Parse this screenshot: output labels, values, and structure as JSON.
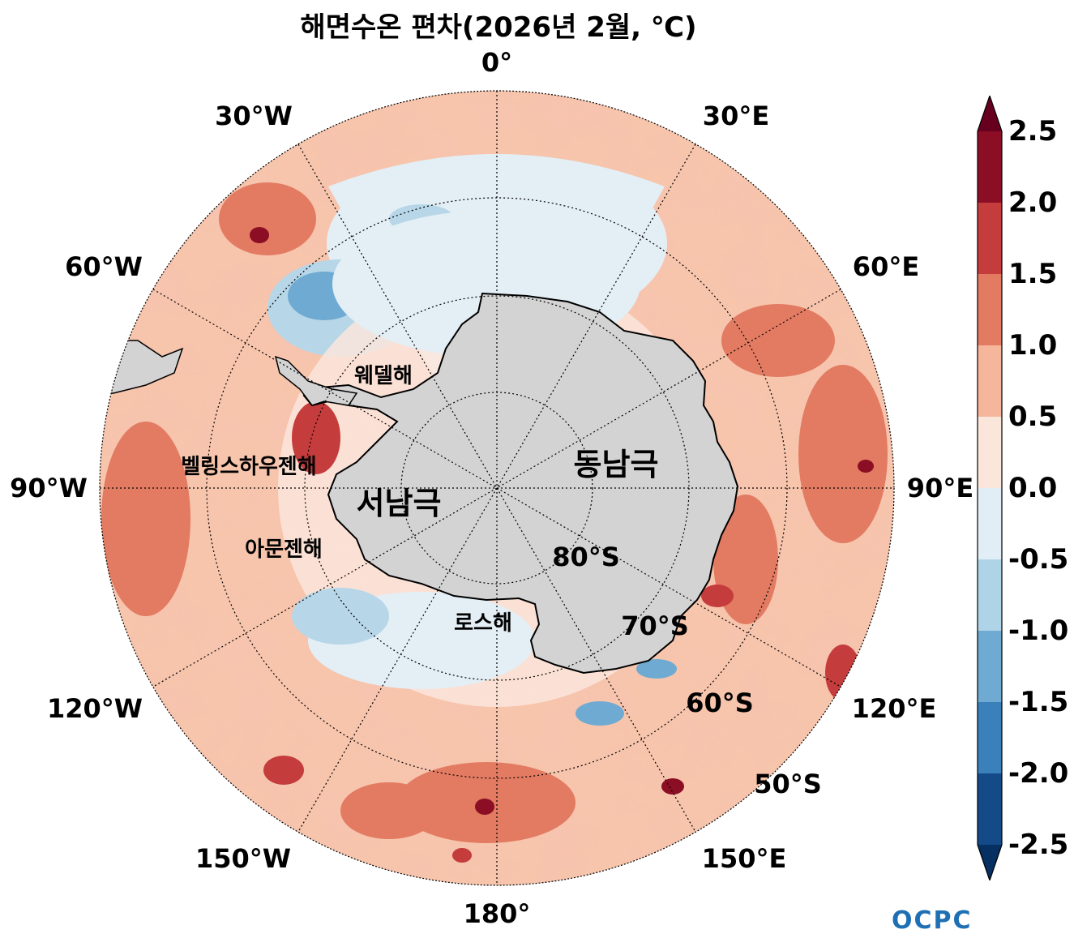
{
  "title": "해면수온 편차(2026년 2월, ℃)",
  "longitude_labels": [
    "0°",
    "30°E",
    "60°E",
    "90°E",
    "120°E",
    "150°E",
    "180°",
    "150°W",
    "120°W",
    "90°W",
    "60°W",
    "30°W"
  ],
  "latitude_labels": [
    "80°S",
    "70°S",
    "60°S",
    "50°S"
  ],
  "regions": {
    "weddell": "웨델해",
    "bellingshausen": "벨링스하우젠해",
    "amundsen": "아문젠해",
    "ross": "로스해",
    "west_antarctica": "서남극",
    "east_antarctica": "동남극"
  },
  "colorbar": {
    "ticks": [
      "2.5",
      "2.0",
      "1.5",
      "1.0",
      "0.5",
      "0.0",
      "-0.5",
      "-1.0",
      "-1.5",
      "-2.0",
      "-2.5"
    ],
    "colors": [
      "#67001f",
      "#8b0e24",
      "#c43c3c",
      "#e27b62",
      "#f6b69b",
      "#fbe6dc",
      "#e2eef5",
      "#b0d4e7",
      "#6eaad2",
      "#3a80bb",
      "#134a87",
      "#053061"
    ]
  },
  "logo": "OCPC"
}
